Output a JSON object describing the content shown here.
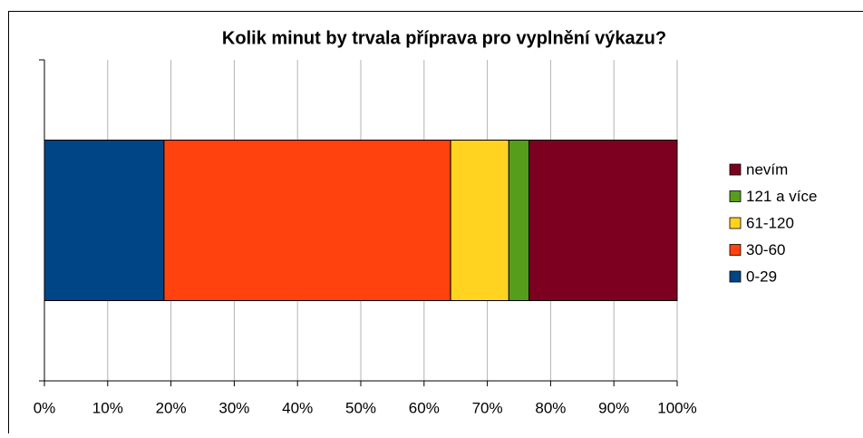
{
  "chart_data": {
    "type": "stacked-bar-horizontal",
    "title": "Kolik minut by trvala příprava pro vyplnění výkazu?",
    "categories": [
      null
    ],
    "series": [
      {
        "name": "0-29",
        "color": "#004586",
        "values": [
          18.9
        ]
      },
      {
        "name": "30-60",
        "color": "#ff420e",
        "values": [
          45.3
        ]
      },
      {
        "name": "61-120",
        "color": "#ffd320",
        "values": [
          9.2
        ]
      },
      {
        "name": "121 a více",
        "color": "#579d1c",
        "values": [
          3.2
        ]
      },
      {
        "name": "nevím",
        "color": "#7e0021",
        "values": [
          23.4
        ]
      }
    ],
    "xlim": [
      0,
      100
    ],
    "xticks": [
      {
        "value": 0,
        "label": "0%"
      },
      {
        "value": 10,
        "label": "10%"
      },
      {
        "value": 20,
        "label": "20%"
      },
      {
        "value": 30,
        "label": "30%"
      },
      {
        "value": 40,
        "label": "40%"
      },
      {
        "value": 50,
        "label": "50%"
      },
      {
        "value": 60,
        "label": "60%"
      },
      {
        "value": 70,
        "label": "70%"
      },
      {
        "value": 80,
        "label": "80%"
      },
      {
        "value": 90,
        "label": "90%"
      },
      {
        "value": 100,
        "label": "100%"
      }
    ],
    "grid": true,
    "legend": "right"
  }
}
